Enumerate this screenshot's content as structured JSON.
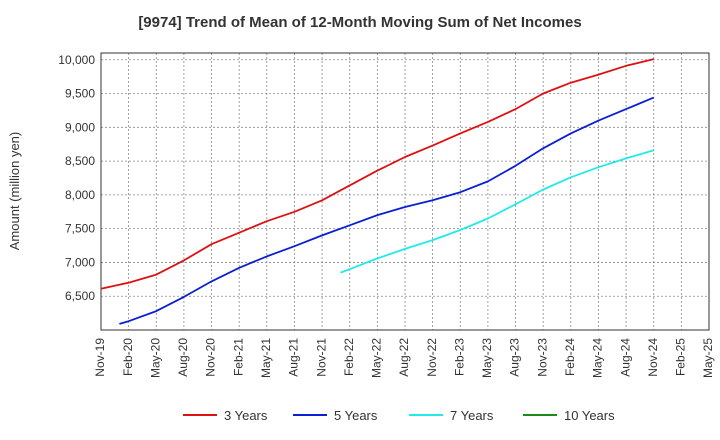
{
  "colors": {
    "series_3y": "#dd1111",
    "series_5y": "#0a1fd4",
    "series_7y": "#22eaea",
    "series_10y": "#1a8a1a",
    "grid": "#888888"
  },
  "chart_data": {
    "type": "line",
    "title": "[9974]  Trend of Mean of 12-Month Moving Sum of Net Incomes",
    "xlabel": "",
    "ylabel": "Amount (million yen)",
    "x_ticks": [
      "Nov-19",
      "Feb-20",
      "May-20",
      "Aug-20",
      "Nov-20",
      "Feb-21",
      "May-21",
      "Aug-21",
      "Nov-21",
      "Feb-22",
      "May-22",
      "Aug-22",
      "Nov-22",
      "Feb-23",
      "May-23",
      "Aug-23",
      "Nov-23",
      "Feb-24",
      "May-24",
      "Aug-24",
      "Nov-24",
      "Feb-25",
      "May-25"
    ],
    "y_ticks": [
      6500,
      7000,
      7500,
      8000,
      8500,
      9000,
      9500,
      10000
    ],
    "y_tick_labels": [
      "6,500",
      "7,000",
      "7,500",
      "8,000",
      "8,500",
      "9,000",
      "9,500",
      "10,000"
    ],
    "ylim": [
      6000,
      10100
    ],
    "grid": true,
    "legend_position": "bottom",
    "series": [
      {
        "name": "3 Years",
        "color_key": "series_3y",
        "points": [
          [
            "Nov-19",
            6610
          ],
          [
            "Feb-20",
            6700
          ],
          [
            "May-20",
            6820
          ],
          [
            "Aug-20",
            7030
          ],
          [
            "Nov-20",
            7270
          ],
          [
            "Feb-21",
            7440
          ],
          [
            "May-21",
            7610
          ],
          [
            "Aug-21",
            7750
          ],
          [
            "Nov-21",
            7920
          ],
          [
            "Feb-22",
            8140
          ],
          [
            "May-22",
            8360
          ],
          [
            "Aug-22",
            8560
          ],
          [
            "Nov-22",
            8730
          ],
          [
            "Feb-23",
            8910
          ],
          [
            "May-23",
            9080
          ],
          [
            "Aug-23",
            9270
          ],
          [
            "Nov-23",
            9500
          ],
          [
            "Feb-24",
            9660
          ],
          [
            "May-24",
            9780
          ],
          [
            "Aug-24",
            9910
          ],
          [
            "Nov-24",
            10010
          ]
        ]
      },
      {
        "name": "5 Years",
        "color_key": "series_5y",
        "points": [
          [
            "Jan-20",
            6090
          ],
          [
            "Feb-20",
            6130
          ],
          [
            "May-20",
            6280
          ],
          [
            "Aug-20",
            6490
          ],
          [
            "Nov-20",
            6720
          ],
          [
            "Feb-21",
            6920
          ],
          [
            "May-21",
            7090
          ],
          [
            "Aug-21",
            7240
          ],
          [
            "Nov-21",
            7400
          ],
          [
            "Feb-22",
            7550
          ],
          [
            "May-22",
            7700
          ],
          [
            "Aug-22",
            7820
          ],
          [
            "Nov-22",
            7920
          ],
          [
            "Feb-23",
            8040
          ],
          [
            "May-23",
            8200
          ],
          [
            "Aug-23",
            8430
          ],
          [
            "Nov-23",
            8690
          ],
          [
            "Feb-24",
            8910
          ],
          [
            "May-24",
            9100
          ],
          [
            "Aug-24",
            9270
          ],
          [
            "Nov-24",
            9440
          ]
        ]
      },
      {
        "name": "7 Years",
        "color_key": "series_7y",
        "points": [
          [
            "Jan-22",
            6850
          ],
          [
            "Feb-22",
            6900
          ],
          [
            "May-22",
            7060
          ],
          [
            "Aug-22",
            7200
          ],
          [
            "Nov-22",
            7330
          ],
          [
            "Feb-23",
            7480
          ],
          [
            "May-23",
            7650
          ],
          [
            "Aug-23",
            7860
          ],
          [
            "Nov-23",
            8080
          ],
          [
            "Feb-24",
            8260
          ],
          [
            "May-24",
            8410
          ],
          [
            "Aug-24",
            8540
          ],
          [
            "Nov-24",
            8660
          ]
        ]
      },
      {
        "name": "10 Years",
        "color_key": "series_10y",
        "points": []
      }
    ]
  }
}
